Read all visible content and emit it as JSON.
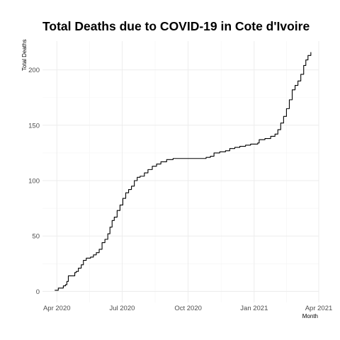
{
  "chart_data": {
    "type": "line",
    "title": "Total Deaths due to COVID-19 in Cote d'Ivoire",
    "xlabel": "Month",
    "ylabel": "Total Deaths",
    "x_tick_labels": [
      "Apr 2020",
      "Jul 2020",
      "Oct 2020",
      "Jan 2021",
      "Apr 2021"
    ],
    "x_tick_dates": [
      "2020-04-01",
      "2020-07-01",
      "2020-10-01",
      "2021-01-01",
      "2021-04-01"
    ],
    "x_range": [
      "2020-03-12",
      "2021-04-01"
    ],
    "y_ticks": [
      0,
      50,
      100,
      150,
      200
    ],
    "ylim": [
      -10,
      226
    ],
    "grid": true,
    "line_color": "#000000",
    "points": [
      [
        "2020-03-29",
        1
      ],
      [
        "2020-04-02",
        1
      ],
      [
        "2020-04-03",
        3
      ],
      [
        "2020-04-08",
        3
      ],
      [
        "2020-04-10",
        5
      ],
      [
        "2020-04-13",
        6
      ],
      [
        "2020-04-15",
        9
      ],
      [
        "2020-04-17",
        14
      ],
      [
        "2020-04-24",
        14
      ],
      [
        "2020-04-26",
        17
      ],
      [
        "2020-04-28",
        18
      ],
      [
        "2020-05-01",
        21
      ],
      [
        "2020-05-05",
        24
      ],
      [
        "2020-05-08",
        28
      ],
      [
        "2020-05-12",
        30
      ],
      [
        "2020-05-18",
        31
      ],
      [
        "2020-05-22",
        33
      ],
      [
        "2020-05-26",
        35
      ],
      [
        "2020-05-30",
        38
      ],
      [
        "2020-06-03",
        44
      ],
      [
        "2020-06-07",
        47
      ],
      [
        "2020-06-11",
        52
      ],
      [
        "2020-06-14",
        58
      ],
      [
        "2020-06-17",
        64
      ],
      [
        "2020-06-20",
        67
      ],
      [
        "2020-06-24",
        73
      ],
      [
        "2020-06-28",
        78
      ],
      [
        "2020-07-02",
        84
      ],
      [
        "2020-07-06",
        89
      ],
      [
        "2020-07-10",
        92
      ],
      [
        "2020-07-14",
        95
      ],
      [
        "2020-07-18",
        100
      ],
      [
        "2020-07-22",
        103
      ],
      [
        "2020-07-26",
        104
      ],
      [
        "2020-08-01",
        107
      ],
      [
        "2020-08-06",
        110
      ],
      [
        "2020-08-12",
        113
      ],
      [
        "2020-08-18",
        115
      ],
      [
        "2020-08-24",
        117
      ],
      [
        "2020-09-01",
        119
      ],
      [
        "2020-09-10",
        120
      ],
      [
        "2020-10-20",
        120
      ],
      [
        "2020-10-26",
        121
      ],
      [
        "2020-11-01",
        122
      ],
      [
        "2020-11-06",
        125
      ],
      [
        "2020-11-14",
        126
      ],
      [
        "2020-11-22",
        127
      ],
      [
        "2020-11-28",
        129
      ],
      [
        "2020-12-05",
        130
      ],
      [
        "2020-12-12",
        131
      ],
      [
        "2020-12-20",
        132
      ],
      [
        "2020-12-27",
        133
      ],
      [
        "2021-01-01",
        133
      ],
      [
        "2021-01-06",
        134
      ],
      [
        "2021-01-08",
        137
      ],
      [
        "2021-01-16",
        138
      ],
      [
        "2021-01-24",
        140
      ],
      [
        "2021-01-30",
        142
      ],
      [
        "2021-02-03",
        146
      ],
      [
        "2021-02-07",
        152
      ],
      [
        "2021-02-11",
        158
      ],
      [
        "2021-02-15",
        165
      ],
      [
        "2021-02-19",
        173
      ],
      [
        "2021-02-23",
        182
      ],
      [
        "2021-02-27",
        186
      ],
      [
        "2021-03-03",
        190
      ],
      [
        "2021-03-07",
        196
      ],
      [
        "2021-03-11",
        204
      ],
      [
        "2021-03-14",
        209
      ],
      [
        "2021-03-17",
        213
      ],
      [
        "2021-03-21",
        216
      ]
    ]
  }
}
